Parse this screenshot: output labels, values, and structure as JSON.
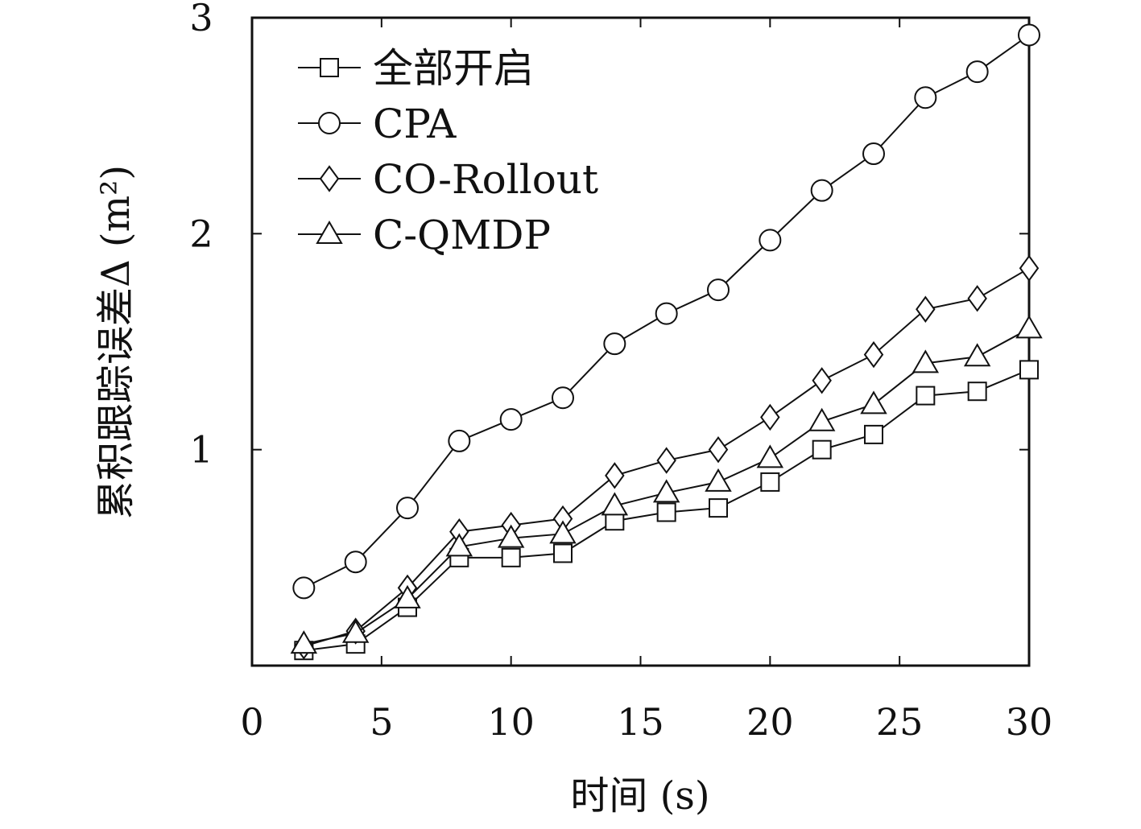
{
  "chart_data": {
    "type": "line",
    "title": "",
    "xlabel": "时间 (s)",
    "ylabel": "累积跟踪误差Δ (m²)",
    "xlim": [
      0,
      30
    ],
    "ylim": [
      0,
      3
    ],
    "x_ticks": [
      "0",
      "5",
      "10",
      "15",
      "20",
      "25",
      "30"
    ],
    "y_ticks": [
      "1",
      "2",
      "3"
    ],
    "legend_position": "top-left",
    "x": [
      2,
      4,
      6,
      8,
      10,
      12,
      14,
      16,
      18,
      20,
      22,
      24,
      26,
      28,
      30
    ],
    "series": [
      {
        "name": "全部开启",
        "marker": "square",
        "values": [
          0.07,
          0.1,
          0.27,
          0.5,
          0.5,
          0.52,
          0.67,
          0.71,
          0.73,
          0.85,
          1.0,
          1.07,
          1.25,
          1.27,
          1.37
        ]
      },
      {
        "name": "CPA",
        "marker": "circle",
        "values": [
          0.36,
          0.48,
          0.73,
          1.04,
          1.14,
          1.24,
          1.49,
          1.63,
          1.74,
          1.97,
          2.2,
          2.37,
          2.63,
          2.75,
          2.92
        ]
      },
      {
        "name": "CO-Rollout",
        "marker": "diamond",
        "values": [
          0.09,
          0.16,
          0.36,
          0.62,
          0.65,
          0.68,
          0.88,
          0.95,
          1.0,
          1.15,
          1.32,
          1.44,
          1.65,
          1.7,
          1.84
        ]
      },
      {
        "name": "C-QMDP",
        "marker": "triangle",
        "values": [
          0.1,
          0.15,
          0.31,
          0.55,
          0.59,
          0.61,
          0.74,
          0.8,
          0.85,
          0.96,
          1.13,
          1.21,
          1.4,
          1.43,
          1.56
        ]
      }
    ]
  }
}
